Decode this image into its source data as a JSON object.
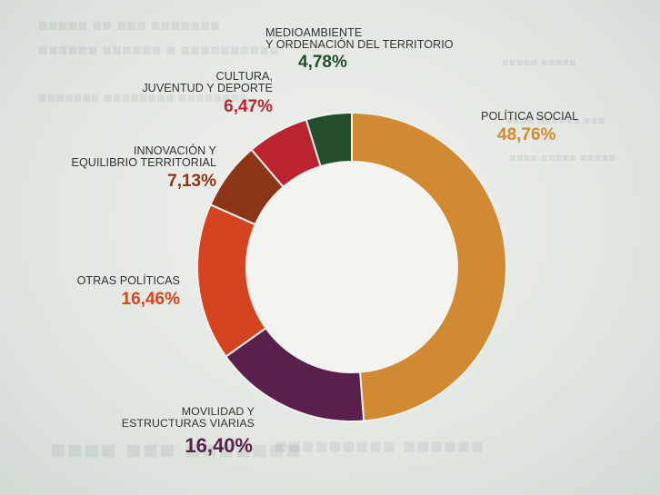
{
  "chart_data": {
    "type": "pie",
    "labels": [
      "POLÍTICA SOCIAL",
      "MOVILIDAD Y\nESTRUCTURAS VIARIAS",
      "OTRAS POLÍTICAS",
      "INNOVACIÓN Y\nEQUILIBRIO TERRITORIAL",
      "CULTURA,\nJUVENTUD Y DEPORTE",
      "MEDIOAMBIENTE\nY ORDENACIÓN DEL TERRITORIO"
    ],
    "values": [
      48.76,
      16.4,
      16.46,
      7.13,
      6.47,
      4.78
    ],
    "value_labels": [
      "48,76%",
      "16,40%",
      "16,46%",
      "7,13%",
      "6,47%",
      "4,78%"
    ],
    "colors": [
      "#d18a32",
      "#5b1f4c",
      "#d6441f",
      "#8d3517",
      "#bd2230",
      "#234d2d"
    ],
    "donut": true,
    "start_angle_deg": 0,
    "direction": "clockwise",
    "legend": "none"
  }
}
